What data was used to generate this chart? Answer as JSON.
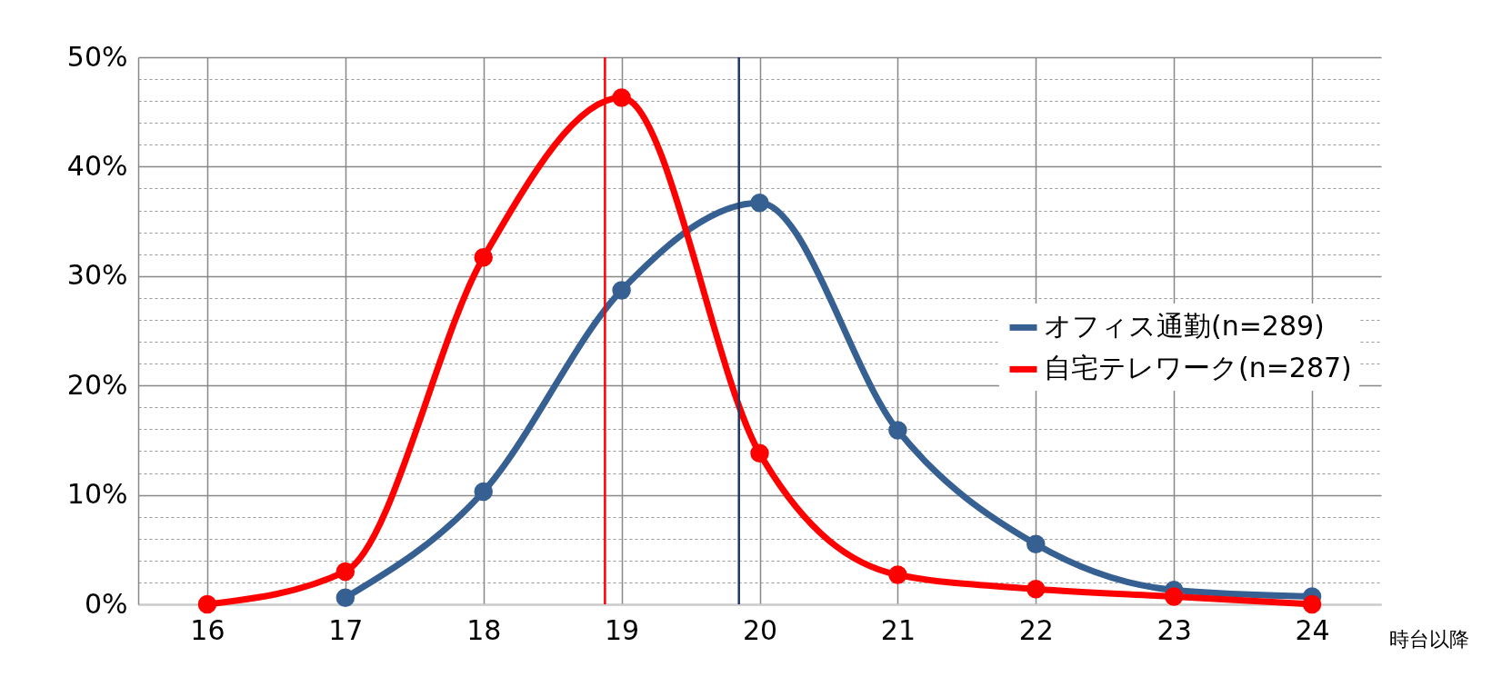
{
  "chart_data": {
    "type": "line",
    "xlabel": "時台以降",
    "x": [
      16,
      17,
      18,
      19,
      20,
      21,
      22,
      23,
      24
    ],
    "xlim": [
      15.5,
      24.5
    ],
    "xticks": [
      16,
      17,
      18,
      19,
      20,
      21,
      22,
      23,
      24
    ],
    "ylim": [
      0,
      50
    ],
    "yticks": [
      {
        "value": 0,
        "label": "0%"
      },
      {
        "value": 2,
        "label": null
      },
      {
        "value": 4,
        "label": null
      },
      {
        "value": 6,
        "label": null
      },
      {
        "value": 8,
        "label": null
      },
      {
        "value": 10,
        "label": "10%"
      },
      {
        "value": 12,
        "label": null
      },
      {
        "value": 14,
        "label": null
      },
      {
        "value": 16,
        "label": null
      },
      {
        "value": 18,
        "label": null
      },
      {
        "value": 20,
        "label": "20%"
      },
      {
        "value": 22,
        "label": null
      },
      {
        "value": 24,
        "label": null
      },
      {
        "value": 26,
        "label": null
      },
      {
        "value": 28,
        "label": null
      },
      {
        "value": 30,
        "label": "30%"
      },
      {
        "value": 32,
        "label": null
      },
      {
        "value": 34,
        "label": null
      },
      {
        "value": 36,
        "label": null
      },
      {
        "value": 38,
        "label": null
      },
      {
        "value": 40,
        "label": "40%"
      },
      {
        "value": 42,
        "label": null
      },
      {
        "value": 44,
        "label": null
      },
      {
        "value": 46,
        "label": null
      },
      {
        "value": 48,
        "label": null
      },
      {
        "value": 50,
        "label": "50%"
      }
    ],
    "series": [
      {
        "name": "オフィス通勤(n=289)",
        "color": "#376092",
        "values": [
          null,
          0.6,
          10.3,
          28.7,
          36.7,
          15.9,
          5.5,
          1.3,
          0.7
        ]
      },
      {
        "name": "自宅テレワーク(n=287)",
        "color": "#ff0000",
        "values": [
          0,
          3.0,
          31.7,
          46.3,
          13.8,
          2.7,
          1.4,
          0.7,
          0
        ]
      }
    ],
    "ref_lines": [
      {
        "axis": "x",
        "value": 18.88,
        "label": null,
        "color": "#ff0000"
      },
      {
        "axis": "x",
        "value": 19.85,
        "label": null,
        "color": "#1f3864"
      }
    ],
    "grid": true,
    "legend": "right",
    "marker": "circle",
    "line_style": "solid"
  }
}
